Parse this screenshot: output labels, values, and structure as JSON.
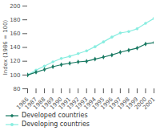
{
  "chart_data": {
    "type": "line",
    "x": [
      1986,
      1987,
      1988,
      1989,
      1990,
      1991,
      1992,
      1993,
      1994,
      1995,
      1996,
      1997,
      1998,
      1999,
      2000,
      2001
    ],
    "series": [
      {
        "name": "Developed countries",
        "color": "#1a7a63",
        "marker": "diamond",
        "values": [
          100,
          104,
          108,
          112,
          115,
          117,
          119,
          120,
          123,
          126,
          129,
          133,
          136,
          139,
          145,
          147
        ]
      },
      {
        "name": "Developing countries",
        "color": "#88ede0",
        "marker": "circle",
        "values": [
          100,
          107,
          113,
          119,
          124,
          127,
          131,
          135,
          141,
          148,
          155,
          161,
          163,
          167,
          175,
          182
        ]
      }
    ],
    "y_label": "Index (1986 = 100)",
    "xlim": [
      1986,
      2001
    ],
    "xticks": [
      1986,
      1987,
      1988,
      1989,
      1990,
      1991,
      1992,
      1993,
      1994,
      1995,
      1996,
      1997,
      1998,
      1999,
      2000,
      2001
    ],
    "ylim": [
      80,
      200
    ],
    "yticks": [
      80,
      100,
      120,
      140,
      160,
      180,
      200
    ],
    "grid": false,
    "legend": "bottom"
  }
}
